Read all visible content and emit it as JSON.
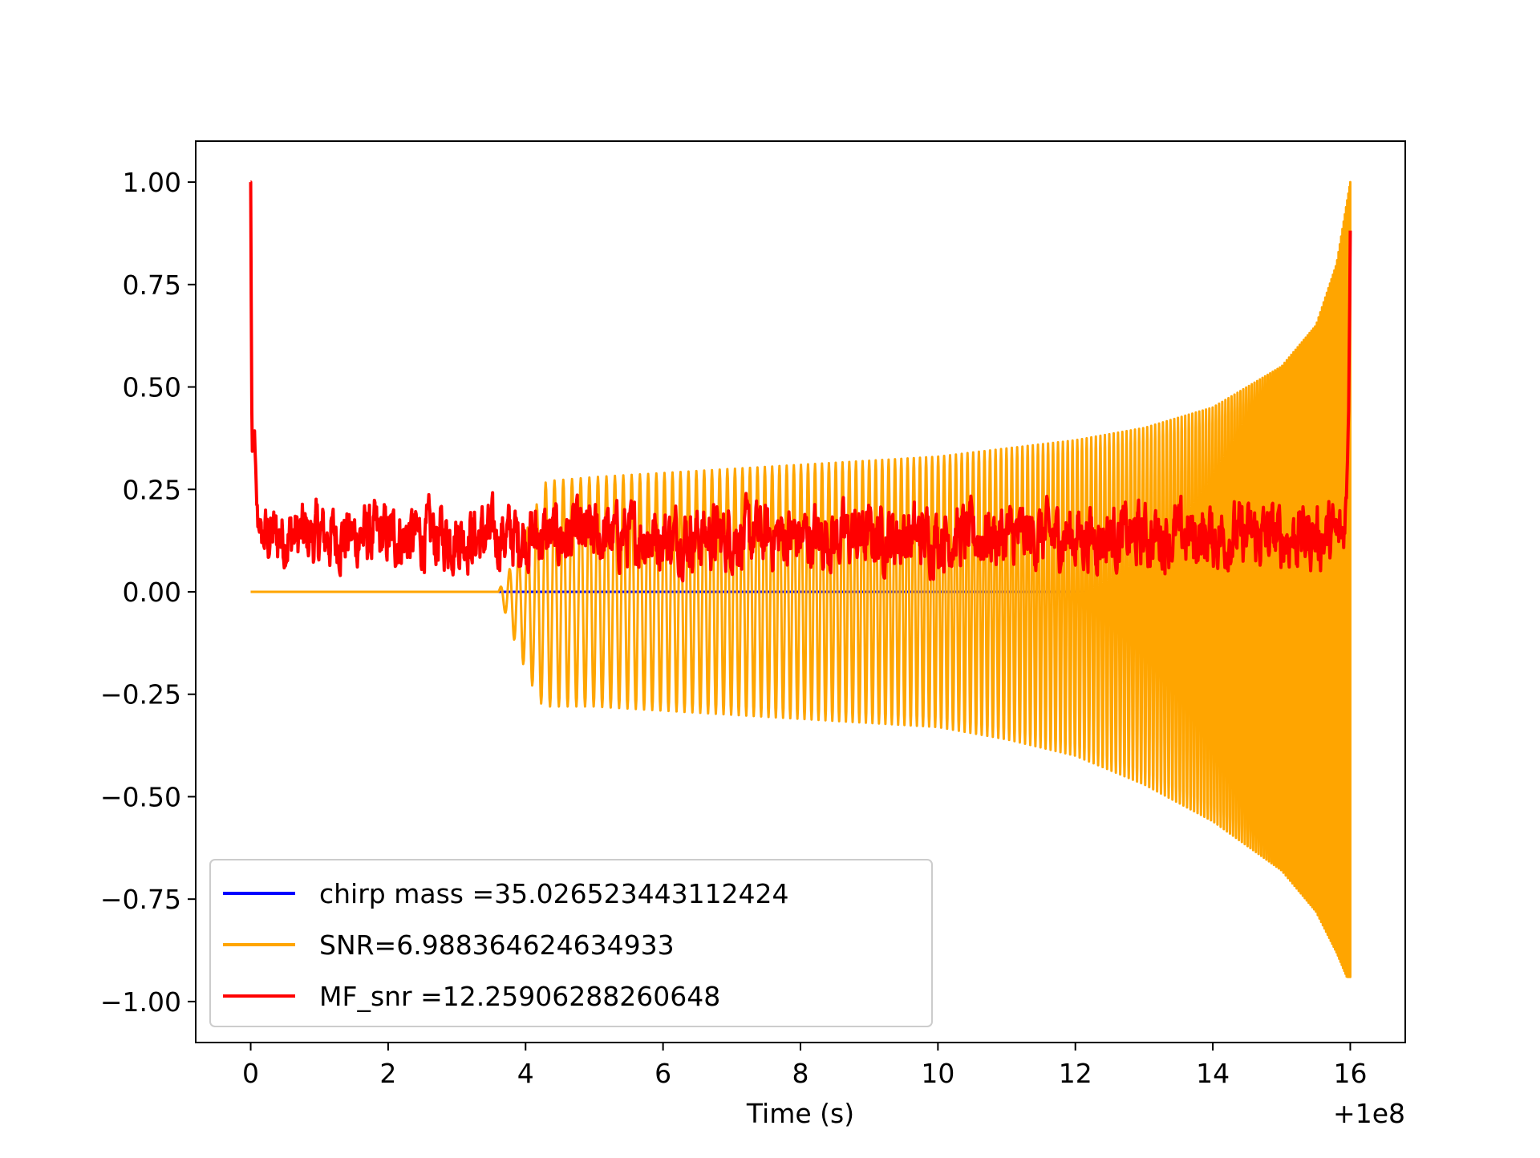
{
  "chart_data": {
    "type": "line",
    "title": "",
    "xlabel": "Time (s)",
    "ylabel": "",
    "x_offset_label": "+1e8",
    "xlim": [
      -0.8,
      16.8
    ],
    "ylim": [
      -1.1,
      1.1
    ],
    "xticks": [
      0,
      2,
      4,
      6,
      8,
      10,
      12,
      14,
      16
    ],
    "xtick_labels": [
      "0",
      "2",
      "4",
      "6",
      "8",
      "10",
      "12",
      "14",
      "16"
    ],
    "yticks": [
      1.0,
      0.75,
      0.5,
      0.25,
      0.0,
      -0.25,
      -0.5,
      -0.75,
      -1.0
    ],
    "ytick_labels": [
      "1.00",
      "0.75",
      "0.50",
      "0.25",
      "0.00",
      "−0.25",
      "−0.50",
      "−0.75",
      "−1.00"
    ],
    "grid": false,
    "legend_position": "lower-left",
    "series": [
      {
        "name": "chirp mass =35.026523443112424",
        "color": "#0000ff",
        "description": "blue line hidden behind the orange waveform",
        "envelope": {
          "x": [],
          "upper": [],
          "lower": []
        }
      },
      {
        "name": "SNR=6.988364624634933",
        "color": "#ffa500",
        "kind": "oscillating chirp waveform",
        "flat_until": 3.6,
        "envelope": {
          "x": [
            3.6,
            3.9,
            4.2,
            4.3,
            5,
            6,
            7,
            8,
            9,
            10,
            11,
            12,
            13,
            14,
            15,
            15.5,
            15.8,
            15.95,
            16.0
          ],
          "upper": [
            0.0,
            0.1,
            0.23,
            0.27,
            0.28,
            0.29,
            0.3,
            0.31,
            0.32,
            0.33,
            0.35,
            0.37,
            0.4,
            0.45,
            0.55,
            0.65,
            0.8,
            0.95,
            1.0
          ],
          "lower": [
            0.0,
            -0.15,
            -0.27,
            -0.28,
            -0.28,
            -0.29,
            -0.3,
            -0.31,
            -0.32,
            -0.33,
            -0.36,
            -0.4,
            -0.47,
            -0.56,
            -0.68,
            -0.78,
            -0.88,
            -0.94,
            -0.94
          ]
        }
      },
      {
        "name": "MF_snr =12.25906288260648",
        "color": "#ff0000",
        "kind": "noisy matched-filter output",
        "x": [
          0.0,
          0.02,
          0.05,
          0.08,
          0.1,
          0.15,
          0.2,
          0.3,
          0.5,
          1.0,
          2.0,
          3.0,
          4.0,
          5.0,
          6.0,
          7.0,
          8.0,
          9.0,
          10.0,
          11.0,
          12.0,
          13.0,
          14.0,
          15.0,
          15.8,
          15.9,
          15.95,
          15.98,
          16.0
        ],
        "y": [
          1.0,
          0.3,
          0.4,
          0.25,
          0.18,
          0.15,
          0.12,
          0.1,
          0.1,
          0.1,
          0.1,
          0.1,
          0.1,
          0.1,
          0.1,
          0.1,
          0.1,
          0.1,
          0.1,
          0.1,
          0.1,
          0.1,
          0.1,
          0.1,
          0.1,
          0.12,
          0.25,
          0.5,
          0.88
        ],
        "noise_range": [
          0.0,
          0.27
        ]
      }
    ]
  }
}
